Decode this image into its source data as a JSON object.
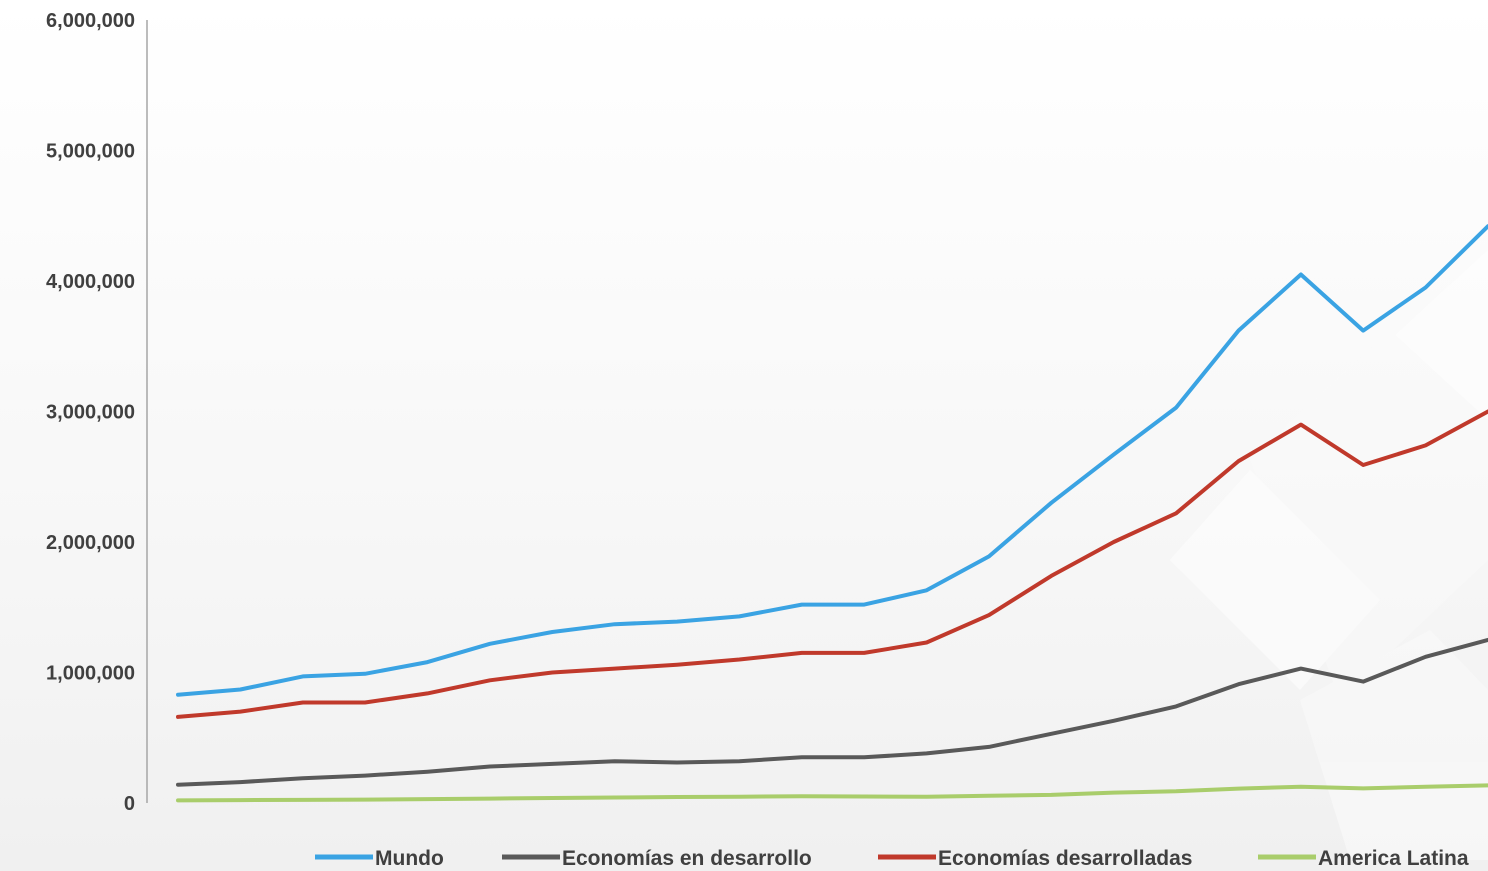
{
  "chart_data": {
    "type": "line",
    "title": "",
    "xlabel": "",
    "ylabel": "",
    "ylim": [
      0,
      6000000
    ],
    "yticks": [
      0,
      1000000,
      2000000,
      3000000,
      4000000,
      5000000,
      6000000
    ],
    "ytick_labels": [
      "0",
      "1,000,000",
      "2,000,000",
      "3,000,000",
      "4,000,000",
      "5,000,000",
      "6,000,000"
    ],
    "x": [
      1,
      2,
      3,
      4,
      5,
      6,
      7,
      8,
      9,
      10,
      11,
      12,
      13,
      14,
      15,
      16,
      17,
      18,
      19,
      20,
      21,
      22
    ],
    "grid": false,
    "legend_position": "bottom",
    "series": [
      {
        "name": "Mundo",
        "color": "#3aa3e3",
        "values": [
          830000,
          870000,
          970000,
          990000,
          1080000,
          1220000,
          1310000,
          1370000,
          1390000,
          1430000,
          1520000,
          1520000,
          1630000,
          1890000,
          2300000,
          2670000,
          3030000,
          3620000,
          4050000,
          3620000,
          3950000,
          4420000
        ]
      },
      {
        "name": "Economías en desarrollo",
        "color": "#595959",
        "values": [
          140000,
          160000,
          190000,
          210000,
          240000,
          280000,
          300000,
          320000,
          310000,
          320000,
          350000,
          350000,
          380000,
          430000,
          530000,
          630000,
          740000,
          910000,
          1030000,
          930000,
          1120000,
          1250000
        ]
      },
      {
        "name": "Economías desarrolladas",
        "color": "#c0392b",
        "values": [
          660000,
          700000,
          770000,
          770000,
          840000,
          940000,
          1000000,
          1030000,
          1060000,
          1100000,
          1150000,
          1150000,
          1230000,
          1440000,
          1740000,
          2000000,
          2220000,
          2620000,
          2900000,
          2590000,
          2740000,
          3000000
        ]
      },
      {
        "name": "America Latina",
        "color": "#a9cd6b",
        "values": [
          20000,
          22000,
          24000,
          26000,
          30000,
          34000,
          38000,
          42000,
          46000,
          48000,
          52000,
          50000,
          48000,
          55000,
          62000,
          80000,
          90000,
          110000,
          125000,
          112000,
          125000,
          135000
        ]
      }
    ]
  }
}
